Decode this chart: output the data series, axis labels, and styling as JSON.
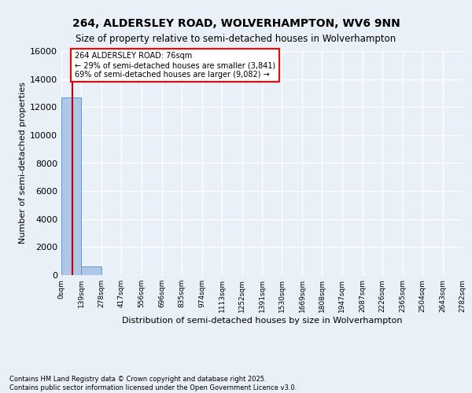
{
  "title": "264, ALDERSLEY ROAD, WOLVERHAMPTON, WV6 9NN",
  "subtitle": "Size of property relative to semi-detached houses in Wolverhampton",
  "xlabel": "Distribution of semi-detached houses by size in Wolverhampton",
  "ylabel": "Number of semi-detached properties",
  "property_size": 76,
  "property_label": "264 ALDERSLEY ROAD: 76sqm",
  "pct_smaller": 29,
  "n_smaller": 3841,
  "pct_larger": 69,
  "n_larger": 9082,
  "bin_edges": [
    0,
    139,
    278,
    417,
    556,
    696,
    835,
    974,
    1113,
    1252,
    1391,
    1530,
    1669,
    1808,
    1947,
    2087,
    2226,
    2365,
    2504,
    2643,
    2782
  ],
  "bin_labels": [
    "0sqm",
    "139sqm",
    "278sqm",
    "417sqm",
    "556sqm",
    "696sqm",
    "835sqm",
    "974sqm",
    "1113sqm",
    "1252sqm",
    "1391sqm",
    "1530sqm",
    "1669sqm",
    "1808sqm",
    "1947sqm",
    "2087sqm",
    "2226sqm",
    "2365sqm",
    "2504sqm",
    "2643sqm",
    "2782sqm"
  ],
  "bar_heights": [
    12700,
    600,
    0,
    0,
    0,
    0,
    0,
    0,
    0,
    0,
    0,
    0,
    0,
    0,
    0,
    0,
    0,
    0,
    0,
    0
  ],
  "bar_color": "#aec6e8",
  "bar_edge_color": "#5b9bd5",
  "ylim": [
    0,
    16000
  ],
  "background_color": "#eaf0f8",
  "plot_bg_color": "#eaf0f8",
  "grid_color": "#ffffff",
  "footer_line1": "Contains HM Land Registry data © Crown copyright and database right 2025.",
  "footer_line2": "Contains public sector information licensed under the Open Government Licence v3.0."
}
